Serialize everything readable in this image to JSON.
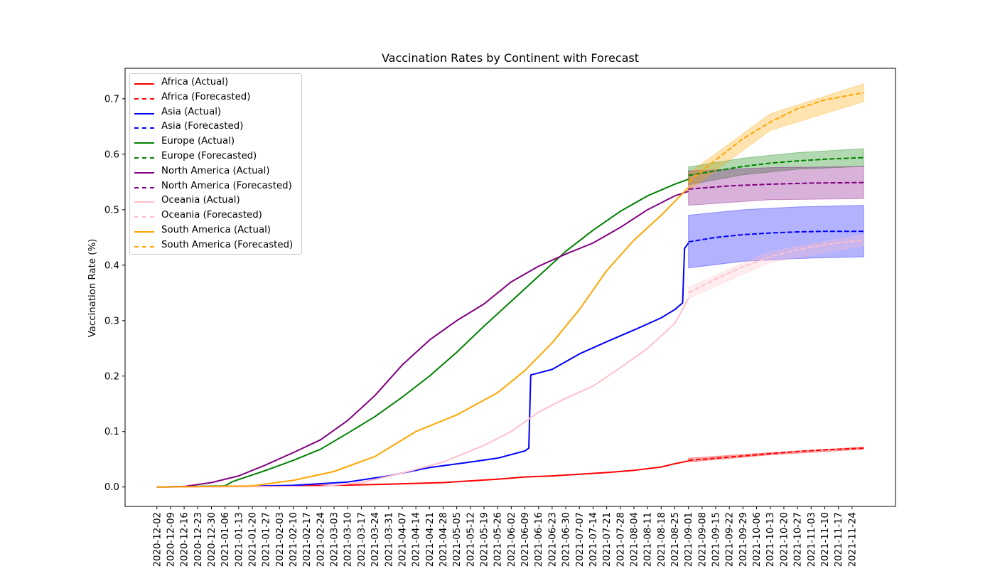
{
  "chart_data": {
    "type": "line",
    "title": "Vaccination Rates by Continent with Forecast",
    "xlabel": "",
    "ylabel": "Vaccination Rate (%)",
    "ylim": [
      -0.035,
      0.755
    ],
    "yticks": [
      0.0,
      0.1,
      0.2,
      0.3,
      0.4,
      0.5,
      0.6,
      0.7
    ],
    "ytick_labels": [
      "0.0",
      "0.1",
      "0.2",
      "0.3",
      "0.4",
      "0.5",
      "0.6",
      "0.7"
    ],
    "x_start": "2020-12-02",
    "x_forecast_start": "2021-09-01",
    "x_end": "2021-11-30",
    "xtick_labels": [
      "2020-12-02",
      "2020-12-09",
      "2020-12-16",
      "2020-12-23",
      "2020-12-30",
      "2021-01-06",
      "2021-01-13",
      "2021-01-20",
      "2021-01-27",
      "2021-02-03",
      "2021-02-10",
      "2021-02-17",
      "2021-02-24",
      "2021-03-03",
      "2021-03-10",
      "2021-03-17",
      "2021-03-24",
      "2021-03-31",
      "2021-04-07",
      "2021-04-14",
      "2021-04-21",
      "2021-04-28",
      "2021-05-05",
      "2021-05-12",
      "2021-05-19",
      "2021-05-26",
      "2021-06-02",
      "2021-06-09",
      "2021-06-16",
      "2021-06-23",
      "2021-06-30",
      "2021-07-07",
      "2021-07-14",
      "2021-07-21",
      "2021-07-28",
      "2021-08-04",
      "2021-08-11",
      "2021-08-18",
      "2021-08-25",
      "2021-09-01",
      "2021-09-08",
      "2021-09-15",
      "2021-09-22",
      "2021-09-29",
      "2021-10-06",
      "2021-10-13",
      "2021-10-20",
      "2021-10-27",
      "2021-11-03",
      "2021-11-10",
      "2021-11-17",
      "2021-11-24"
    ],
    "legend": {
      "placement": "upper-left"
    },
    "grid": false,
    "series": [
      {
        "name": "Africa (Actual)",
        "color": "#ff0000",
        "style": "solid",
        "points": [
          [
            "2020-12-02",
            0.0
          ],
          [
            "2021-01-06",
            0.001
          ],
          [
            "2021-02-03",
            0.002
          ],
          [
            "2021-03-03",
            0.003
          ],
          [
            "2021-03-31",
            0.005
          ],
          [
            "2021-04-28",
            0.008
          ],
          [
            "2021-05-26",
            0.014
          ],
          [
            "2021-06-09",
            0.018
          ],
          [
            "2021-06-23",
            0.02
          ],
          [
            "2021-07-07",
            0.023
          ],
          [
            "2021-07-21",
            0.026
          ],
          [
            "2021-08-04",
            0.03
          ],
          [
            "2021-08-18",
            0.036
          ],
          [
            "2021-08-25",
            0.042
          ],
          [
            "2021-09-01",
            0.047
          ]
        ]
      },
      {
        "name": "Africa (Forecasted)",
        "color": "#ff0000",
        "style": "dashed",
        "points": [
          [
            "2021-09-01",
            0.048
          ],
          [
            "2021-09-15",
            0.052
          ],
          [
            "2021-09-29",
            0.056
          ],
          [
            "2021-10-13",
            0.06
          ],
          [
            "2021-10-27",
            0.064
          ],
          [
            "2021-11-10",
            0.067
          ],
          [
            "2021-11-30",
            0.07
          ]
        ],
        "band": [
          [
            "2021-09-01",
            0.045,
            0.052
          ],
          [
            "2021-10-13",
            0.058,
            0.062
          ],
          [
            "2021-11-30",
            0.068,
            0.072
          ]
        ]
      },
      {
        "name": "Asia (Actual)",
        "color": "#0000ff",
        "style": "solid",
        "points": [
          [
            "2020-12-02",
            0.0
          ],
          [
            "2021-01-13",
            0.001
          ],
          [
            "2021-02-10",
            0.003
          ],
          [
            "2021-03-10",
            0.009
          ],
          [
            "2021-03-31",
            0.02
          ],
          [
            "2021-04-21",
            0.035
          ],
          [
            "2021-05-12",
            0.045
          ],
          [
            "2021-05-26",
            0.052
          ],
          [
            "2021-06-09",
            0.065
          ],
          [
            "2021-06-11",
            0.07
          ],
          [
            "2021-06-12",
            0.202
          ],
          [
            "2021-06-23",
            0.212
          ],
          [
            "2021-07-07",
            0.24
          ],
          [
            "2021-07-21",
            0.262
          ],
          [
            "2021-08-04",
            0.283
          ],
          [
            "2021-08-18",
            0.305
          ],
          [
            "2021-08-25",
            0.32
          ],
          [
            "2021-08-29",
            0.332
          ],
          [
            "2021-08-30",
            0.43
          ],
          [
            "2021-09-01",
            0.44
          ]
        ]
      },
      {
        "name": "Asia (Forecasted)",
        "color": "#0000ff",
        "style": "dashed",
        "points": [
          [
            "2021-09-01",
            0.442
          ],
          [
            "2021-09-15",
            0.45
          ],
          [
            "2021-09-29",
            0.455
          ],
          [
            "2021-10-13",
            0.458
          ],
          [
            "2021-10-27",
            0.46
          ],
          [
            "2021-11-10",
            0.461
          ],
          [
            "2021-11-30",
            0.461
          ]
        ],
        "band": [
          [
            "2021-09-01",
            0.395,
            0.49
          ],
          [
            "2021-09-29",
            0.407,
            0.5
          ],
          [
            "2021-10-27",
            0.412,
            0.505
          ],
          [
            "2021-11-30",
            0.415,
            0.508
          ]
        ]
      },
      {
        "name": "Europe (Actual)",
        "color": "#008000",
        "style": "solid",
        "points": [
          [
            "2020-12-02",
            0.0
          ],
          [
            "2021-01-06",
            0.002
          ],
          [
            "2021-01-10",
            0.01
          ],
          [
            "2021-01-27",
            0.03
          ],
          [
            "2021-02-10",
            0.048
          ],
          [
            "2021-02-24",
            0.068
          ],
          [
            "2021-03-10",
            0.097
          ],
          [
            "2021-03-24",
            0.127
          ],
          [
            "2021-04-07",
            0.162
          ],
          [
            "2021-04-21",
            0.2
          ],
          [
            "2021-05-05",
            0.243
          ],
          [
            "2021-05-19",
            0.29
          ],
          [
            "2021-06-02",
            0.335
          ],
          [
            "2021-06-16",
            0.38
          ],
          [
            "2021-06-30",
            0.425
          ],
          [
            "2021-07-14",
            0.463
          ],
          [
            "2021-07-28",
            0.497
          ],
          [
            "2021-08-11",
            0.525
          ],
          [
            "2021-08-25",
            0.546
          ],
          [
            "2021-09-01",
            0.555
          ]
        ]
      },
      {
        "name": "Europe (Forecasted)",
        "color": "#008000",
        "style": "dashed",
        "points": [
          [
            "2021-09-01",
            0.562
          ],
          [
            "2021-09-15",
            0.57
          ],
          [
            "2021-09-29",
            0.578
          ],
          [
            "2021-10-13",
            0.584
          ],
          [
            "2021-10-27",
            0.588
          ],
          [
            "2021-11-10",
            0.591
          ],
          [
            "2021-11-30",
            0.594
          ]
        ],
        "band": [
          [
            "2021-09-01",
            0.545,
            0.577
          ],
          [
            "2021-09-29",
            0.563,
            0.593
          ],
          [
            "2021-10-27",
            0.573,
            0.603
          ],
          [
            "2021-11-30",
            0.578,
            0.61
          ]
        ]
      },
      {
        "name": "North America (Actual)",
        "color": "#800080",
        "style": "solid",
        "points": [
          [
            "2020-12-02",
            0.0
          ],
          [
            "2020-12-16",
            0.001
          ],
          [
            "2020-12-30",
            0.008
          ],
          [
            "2021-01-13",
            0.02
          ],
          [
            "2021-01-27",
            0.04
          ],
          [
            "2021-02-10",
            0.062
          ],
          [
            "2021-02-24",
            0.085
          ],
          [
            "2021-03-10",
            0.12
          ],
          [
            "2021-03-24",
            0.165
          ],
          [
            "2021-04-07",
            0.22
          ],
          [
            "2021-04-21",
            0.265
          ],
          [
            "2021-05-05",
            0.3
          ],
          [
            "2021-05-19",
            0.33
          ],
          [
            "2021-06-02",
            0.37
          ],
          [
            "2021-06-16",
            0.398
          ],
          [
            "2021-06-30",
            0.42
          ],
          [
            "2021-07-14",
            0.44
          ],
          [
            "2021-07-28",
            0.468
          ],
          [
            "2021-08-11",
            0.5
          ],
          [
            "2021-08-25",
            0.525
          ],
          [
            "2021-09-01",
            0.533
          ]
        ]
      },
      {
        "name": "North America (Forecasted)",
        "color": "#800080",
        "style": "dashed",
        "points": [
          [
            "2021-09-01",
            0.537
          ],
          [
            "2021-09-22",
            0.543
          ],
          [
            "2021-10-13",
            0.546
          ],
          [
            "2021-11-03",
            0.548
          ],
          [
            "2021-11-30",
            0.549
          ]
        ],
        "band": [
          [
            "2021-09-01",
            0.508,
            0.57
          ],
          [
            "2021-10-13",
            0.518,
            0.576
          ],
          [
            "2021-11-30",
            0.52,
            0.578
          ]
        ]
      },
      {
        "name": "Oceania (Actual)",
        "color": "#ffc0cb",
        "style": "solid",
        "points": [
          [
            "2020-12-02",
            0.0
          ],
          [
            "2021-02-24",
            0.001
          ],
          [
            "2021-03-17",
            0.008
          ],
          [
            "2021-04-07",
            0.025
          ],
          [
            "2021-04-28",
            0.045
          ],
          [
            "2021-05-19",
            0.075
          ],
          [
            "2021-06-02",
            0.1
          ],
          [
            "2021-06-16",
            0.135
          ],
          [
            "2021-06-30",
            0.16
          ],
          [
            "2021-07-14",
            0.182
          ],
          [
            "2021-07-28",
            0.215
          ],
          [
            "2021-08-11",
            0.25
          ],
          [
            "2021-08-25",
            0.295
          ],
          [
            "2021-09-01",
            0.34
          ]
        ]
      },
      {
        "name": "Oceania (Forecasted)",
        "color": "#ffc0cb",
        "style": "dashed",
        "points": [
          [
            "2021-09-01",
            0.35
          ],
          [
            "2021-09-15",
            0.375
          ],
          [
            "2021-09-29",
            0.397
          ],
          [
            "2021-10-13",
            0.415
          ],
          [
            "2021-10-27",
            0.428
          ],
          [
            "2021-11-10",
            0.437
          ],
          [
            "2021-11-30",
            0.445
          ]
        ],
        "band": [
          [
            "2021-09-01",
            0.34,
            0.36
          ],
          [
            "2021-10-13",
            0.405,
            0.425
          ],
          [
            "2021-11-30",
            0.435,
            0.455
          ]
        ]
      },
      {
        "name": "South America (Actual)",
        "color": "#ffa500",
        "style": "solid",
        "points": [
          [
            "2020-12-02",
            0.0
          ],
          [
            "2021-01-20",
            0.002
          ],
          [
            "2021-02-10",
            0.012
          ],
          [
            "2021-03-03",
            0.028
          ],
          [
            "2021-03-24",
            0.055
          ],
          [
            "2021-04-14",
            0.1
          ],
          [
            "2021-05-05",
            0.13
          ],
          [
            "2021-05-26",
            0.17
          ],
          [
            "2021-06-09",
            0.21
          ],
          [
            "2021-06-23",
            0.26
          ],
          [
            "2021-07-07",
            0.32
          ],
          [
            "2021-07-21",
            0.39
          ],
          [
            "2021-08-04",
            0.445
          ],
          [
            "2021-08-18",
            0.49
          ],
          [
            "2021-09-01",
            0.54
          ]
        ]
      },
      {
        "name": "South America (Forecasted)",
        "color": "#ffa500",
        "style": "dashed",
        "points": [
          [
            "2021-09-01",
            0.55
          ],
          [
            "2021-09-15",
            0.59
          ],
          [
            "2021-09-29",
            0.628
          ],
          [
            "2021-10-13",
            0.658
          ],
          [
            "2021-10-27",
            0.682
          ],
          [
            "2021-11-10",
            0.698
          ],
          [
            "2021-11-30",
            0.711
          ]
        ],
        "band": [
          [
            "2021-09-01",
            0.535,
            0.565
          ],
          [
            "2021-10-13",
            0.643,
            0.673
          ],
          [
            "2021-11-30",
            0.695,
            0.727
          ]
        ]
      }
    ]
  }
}
